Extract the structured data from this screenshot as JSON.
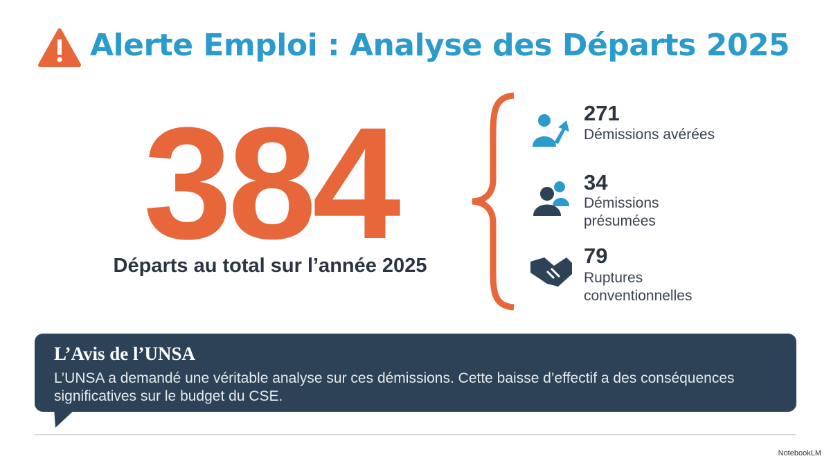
{
  "header": {
    "title": "Alerte Emploi : Analyse des Départs 2025"
  },
  "total": {
    "value": 384,
    "label": "Départs au total sur l’année 2025"
  },
  "items": [
    {
      "value": 271,
      "label": "Démissions avérées"
    },
    {
      "value": 34,
      "label": "Démissions présumées"
    },
    {
      "value": 79,
      "label": "Ruptures conventionnelles"
    }
  ],
  "opinion": {
    "title": "L’Avis de l’UNSA",
    "text": "L’UNSA a demandé une véritable analyse sur ces démissions. Cette baisse d’effectif a des conséquences significatives sur le budget du CSE."
  },
  "footer": {
    "brand": "NotebookLM"
  }
}
